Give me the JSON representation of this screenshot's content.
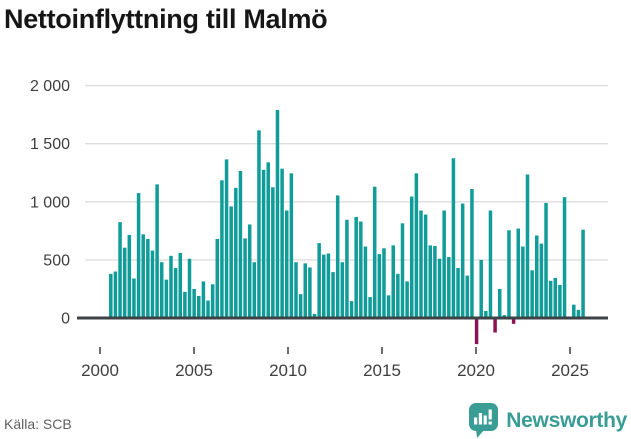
{
  "title": "Nettoinflyttning till Malmö",
  "footer": {
    "source": "Källa: SCB",
    "brand": "Newsworthy"
  },
  "colors": {
    "bar_positive": "#109c98",
    "bar_negative": "#8c1253",
    "brand_teal": "#3a9d95",
    "axis": "#3d4247",
    "gridline": "#dddddd",
    "tick": "#4a4a4a",
    "label_text": "#3f3f3f"
  },
  "chart_data": {
    "type": "bar",
    "title": "Nettoinflyttning till Malmö",
    "xlabel": "",
    "ylabel": "",
    "unit": "personer (nettoinflyttning per kvartal)",
    "frequency": "quarterly",
    "start": "2000-Q1",
    "end": "2025-Q3",
    "grid": "horizontal",
    "legend": "none",
    "ylim": [
      -300,
      2050
    ],
    "x_tick_years": [
      2000,
      2005,
      2010,
      2015,
      2020,
      2025
    ],
    "y_tick_values": [
      0,
      500,
      1000,
      1500,
      2000
    ],
    "y_tick_labels": [
      "0",
      "500",
      "1 000",
      "1 500",
      "2 000"
    ],
    "values": [
      380,
      400,
      825,
      605,
      715,
      340,
      1075,
      720,
      680,
      580,
      1150,
      480,
      330,
      535,
      430,
      560,
      225,
      510,
      250,
      190,
      315,
      150,
      290,
      680,
      1185,
      1365,
      960,
      1120,
      1265,
      685,
      805,
      480,
      1615,
      1275,
      1340,
      1125,
      1790,
      1285,
      925,
      1245,
      480,
      205,
      470,
      435,
      35,
      645,
      545,
      555,
      395,
      1055,
      480,
      845,
      145,
      870,
      830,
      615,
      180,
      1130,
      550,
      600,
      195,
      625,
      380,
      815,
      315,
      1045,
      1245,
      925,
      890,
      625,
      620,
      510,
      925,
      525,
      1375,
      430,
      985,
      365,
      1110,
      -225,
      500,
      60,
      925,
      -125,
      250,
      25,
      755,
      -50,
      770,
      615,
      1235,
      410,
      710,
      640,
      990,
      320,
      345,
      285,
      1040,
      10,
      115,
      70,
      760
    ]
  }
}
